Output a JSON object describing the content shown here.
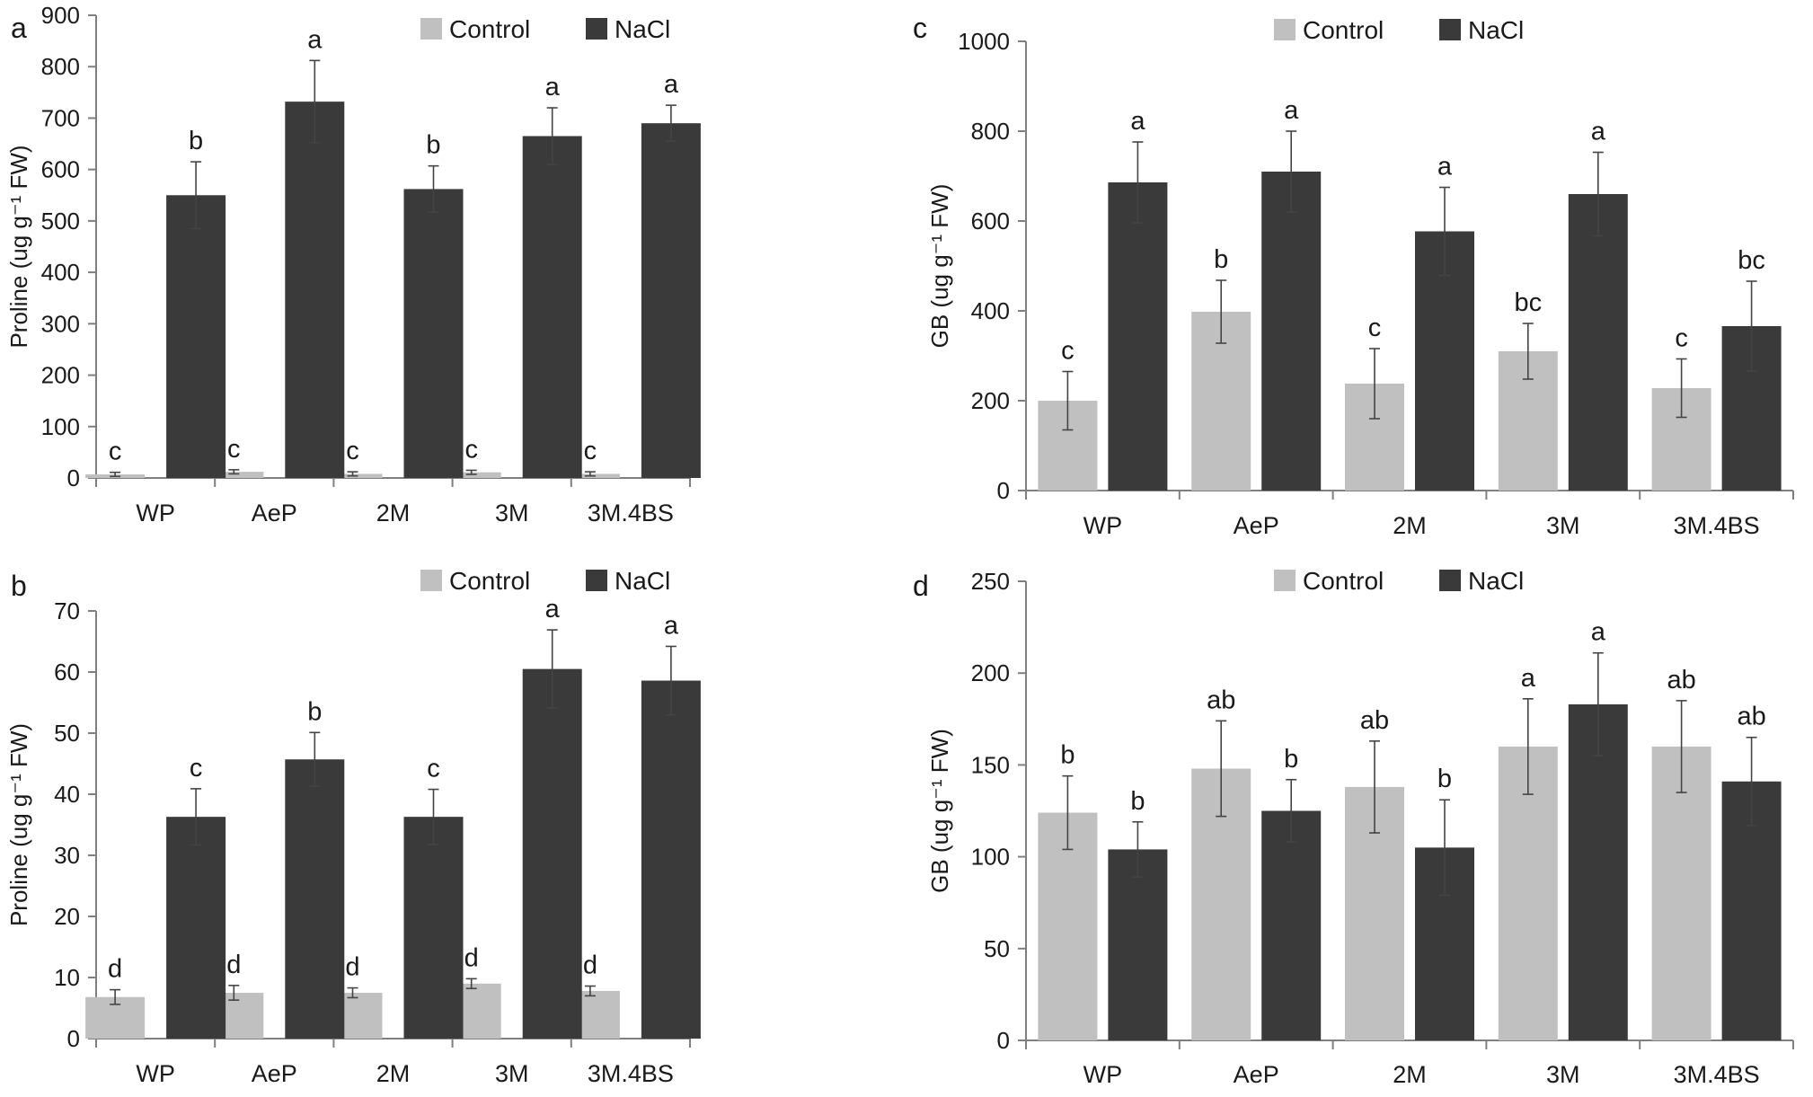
{
  "colors": {
    "control": "#c0c0c0",
    "nacl": "#3a3a3a",
    "axis": "#7f7f7f",
    "text": "#1a1a1a"
  },
  "chart_data": [
    {
      "type": "bar",
      "panel_label": "a",
      "categories": [
        "WP",
        "AeP",
        "2M",
        "3M",
        "3M.4BS"
      ],
      "ylabel": "Proline (ug g⁻¹ FW)",
      "ylim": [
        0,
        900
      ],
      "yticks": [
        "0",
        "100",
        "200",
        "300",
        "400",
        "500",
        "600",
        "700",
        "800",
        "900"
      ],
      "legend": [
        "Control",
        "NaCl"
      ],
      "legend_position": "top",
      "grid": false,
      "series": [
        {
          "name": "Control",
          "values": [
            7,
            12,
            8,
            11,
            8
          ],
          "errors": [
            4,
            4,
            4,
            4,
            4
          ],
          "letters": [
            "c",
            "c",
            "c",
            "c",
            "c"
          ]
        },
        {
          "name": "NaCl",
          "values": [
            550,
            732,
            562,
            665,
            690
          ],
          "errors": [
            65,
            80,
            45,
            55,
            35
          ],
          "letters": [
            "b",
            "a",
            "b",
            "a",
            "a"
          ]
        }
      ]
    },
    {
      "type": "bar",
      "panel_label": "b",
      "categories": [
        "WP",
        "AeP",
        "2M",
        "3M",
        "3M.4BS"
      ],
      "ylabel": "Proline (ug g⁻¹ FW)",
      "ylim": [
        0,
        70
      ],
      "yticks": [
        "0",
        "10",
        "20",
        "30",
        "40",
        "50",
        "60",
        "70"
      ],
      "legend": [
        "Control",
        "NaCl"
      ],
      "legend_position": "top",
      "grid": false,
      "series": [
        {
          "name": "Control",
          "values": [
            6.8,
            7.5,
            7.5,
            9,
            7.8
          ],
          "errors": [
            1.2,
            1.2,
            0.8,
            0.8,
            0.8
          ],
          "letters": [
            "d",
            "d",
            "d",
            "d",
            "d"
          ]
        },
        {
          "name": "NaCl",
          "values": [
            36.3,
            45.7,
            36.3,
            60.5,
            58.6
          ],
          "errors": [
            4.6,
            4.4,
            4.5,
            6.4,
            5.6
          ],
          "letters": [
            "c",
            "b",
            "c",
            "a",
            "a"
          ]
        }
      ]
    },
    {
      "type": "bar",
      "panel_label": "c",
      "categories": [
        "WP",
        "AeP",
        "2M",
        "3M",
        "3M.4BS"
      ],
      "ylabel": "GB (ug g⁻¹ FW)",
      "ylim": [
        0,
        1000
      ],
      "yticks": [
        "0",
        "200",
        "400",
        "600",
        "800",
        "1000"
      ],
      "legend": [
        "Control",
        "NaCl"
      ],
      "legend_position": "top",
      "grid": false,
      "series": [
        {
          "name": "Control",
          "values": [
            200,
            398,
            238,
            310,
            228
          ],
          "errors": [
            65,
            70,
            78,
            62,
            65
          ],
          "letters": [
            "c",
            "b",
            "c",
            "bc",
            "c"
          ]
        },
        {
          "name": "NaCl",
          "values": [
            686,
            710,
            577,
            660,
            366
          ],
          "errors": [
            90,
            90,
            98,
            93,
            100
          ],
          "letters": [
            "a",
            "a",
            "a",
            "a",
            "bc"
          ]
        }
      ]
    },
    {
      "type": "bar",
      "panel_label": "d",
      "categories": [
        "WP",
        "AeP",
        "2M",
        "3M",
        "3M.4BS"
      ],
      "ylabel": "GB (ug g⁻¹ FW)",
      "ylim": [
        0,
        250
      ],
      "yticks": [
        "0",
        "50",
        "100",
        "150",
        "200",
        "250"
      ],
      "legend": [
        "Control",
        "NaCl"
      ],
      "legend_position": "top",
      "grid": false,
      "series": [
        {
          "name": "Control",
          "values": [
            124,
            148,
            138,
            160,
            160
          ],
          "errors": [
            20,
            26,
            25,
            26,
            25
          ],
          "letters": [
            "b",
            "ab",
            "ab",
            "a",
            "ab"
          ]
        },
        {
          "name": "NaCl",
          "values": [
            104,
            125,
            105,
            183,
            141
          ],
          "errors": [
            15,
            17,
            26,
            28,
            24
          ],
          "letters": [
            "b",
            "b",
            "b",
            "a",
            "ab"
          ]
        }
      ]
    }
  ]
}
